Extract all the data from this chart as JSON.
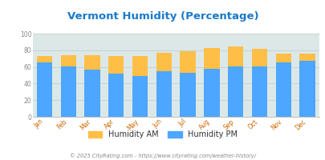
{
  "title": "Vermont Humidity (Percentage)",
  "months": [
    "Jan",
    "Feb",
    "Mar",
    "Apr",
    "May",
    "Jun",
    "Jul",
    "Aug",
    "Sep",
    "Oct",
    "Nov",
    "Dec"
  ],
  "humidity_pm": [
    65,
    61,
    57,
    52,
    49,
    55,
    53,
    58,
    61,
    61,
    65,
    67
  ],
  "humidity_am_total": [
    73,
    74,
    74,
    73,
    73,
    77,
    79,
    83,
    85,
    82,
    76,
    76
  ],
  "bar_color_pm": "#4da6ff",
  "bar_color_am": "#ffbf47",
  "plot_bg_color": "#dce8e8",
  "fig_bg_color": "#ffffff",
  "title_color": "#1a7acc",
  "ylim": [
    0,
    100
  ],
  "yticks": [
    0,
    20,
    40,
    60,
    80,
    100
  ],
  "legend_am_label": "Humidity AM",
  "legend_pm_label": "Humidity PM",
  "legend_text_color": "#333333",
  "footer": "© 2025 CityRating.com - https://www.cityrating.com/weather-history/",
  "footer_color": "#888888",
  "tick_label_color_x": "#cc6600",
  "tick_label_color_y": "#888888",
  "grid_color": "#bbcccc"
}
